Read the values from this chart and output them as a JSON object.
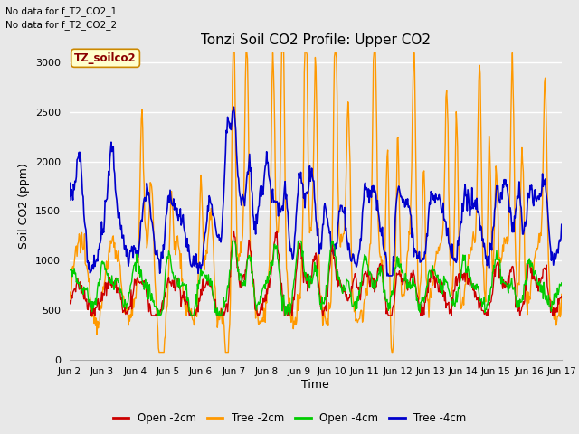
{
  "title": "Tonzi Soil CO2 Profile: Upper CO2",
  "xlabel": "Time",
  "ylabel": "Soil CO2 (ppm)",
  "annotation_lines": [
    "No data for f_T2_CO2_1",
    "No data for f_T2_CO2_2"
  ],
  "legend_label": "TZ_soilco2",
  "series_labels": [
    "Open -2cm",
    "Tree -2cm",
    "Open -4cm",
    "Tree -4cm"
  ],
  "series_colors": [
    "#cc0000",
    "#ff9900",
    "#00cc00",
    "#0000cc"
  ],
  "ylim": [
    0,
    3100
  ],
  "yticks": [
    0,
    500,
    1000,
    1500,
    2000,
    2500,
    3000
  ],
  "background_color": "#e8e8e8",
  "plot_bg_color": "#e8e8e8",
  "grid_color": "#ffffff",
  "x_tick_labels": [
    "Jun 2",
    "Jun 3",
    "Jun 4",
    "Jun 5",
    "Jun 6",
    "Jun 7",
    "Jun 8",
    "Jun 9",
    "Jun 10",
    "Jun 11",
    "Jun 12",
    "Jun 13",
    "Jun 14",
    "Jun 15",
    "Jun 16",
    "Jun 17"
  ],
  "x_tick_positions": [
    2,
    3,
    4,
    5,
    6,
    7,
    8,
    9,
    10,
    11,
    12,
    13,
    14,
    15,
    16,
    17
  ]
}
